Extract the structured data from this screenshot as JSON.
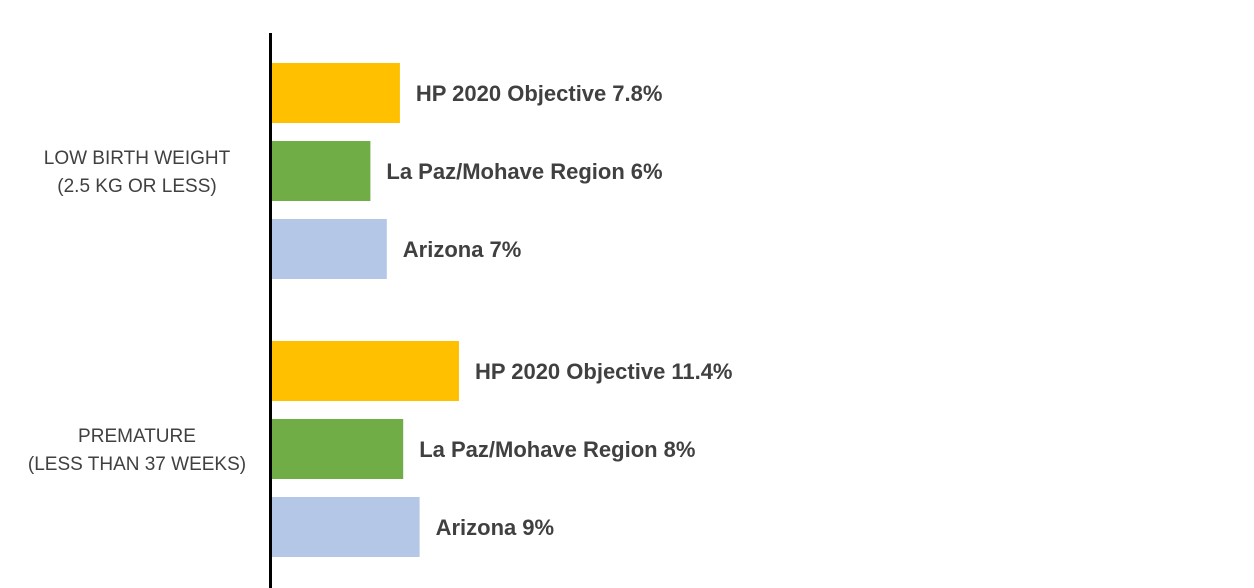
{
  "chart_data": {
    "type": "hbar",
    "categories": [
      [
        "LOW BIRTH WEIGHT",
        "(2.5 KG OR LESS)"
      ],
      [
        "PREMATURE",
        "(LESS THAN 37 WEEKS)"
      ]
    ],
    "series": [
      {
        "name": "HP 2020 Objective",
        "color": "#ffc000",
        "values": [
          7.8,
          11.4
        ],
        "value_labels": [
          "7.8%",
          "11.4%"
        ]
      },
      {
        "name": "La Paz/Mohave Region",
        "color": "#70ad47",
        "values": [
          6,
          8
        ],
        "value_labels": [
          "6%",
          "8%"
        ]
      },
      {
        "name": "Arizona",
        "color": "#b4c7e7",
        "values": [
          7,
          9
        ],
        "value_labels": [
          "7%",
          "9%"
        ]
      }
    ],
    "xlim": [
      0,
      60
    ]
  }
}
